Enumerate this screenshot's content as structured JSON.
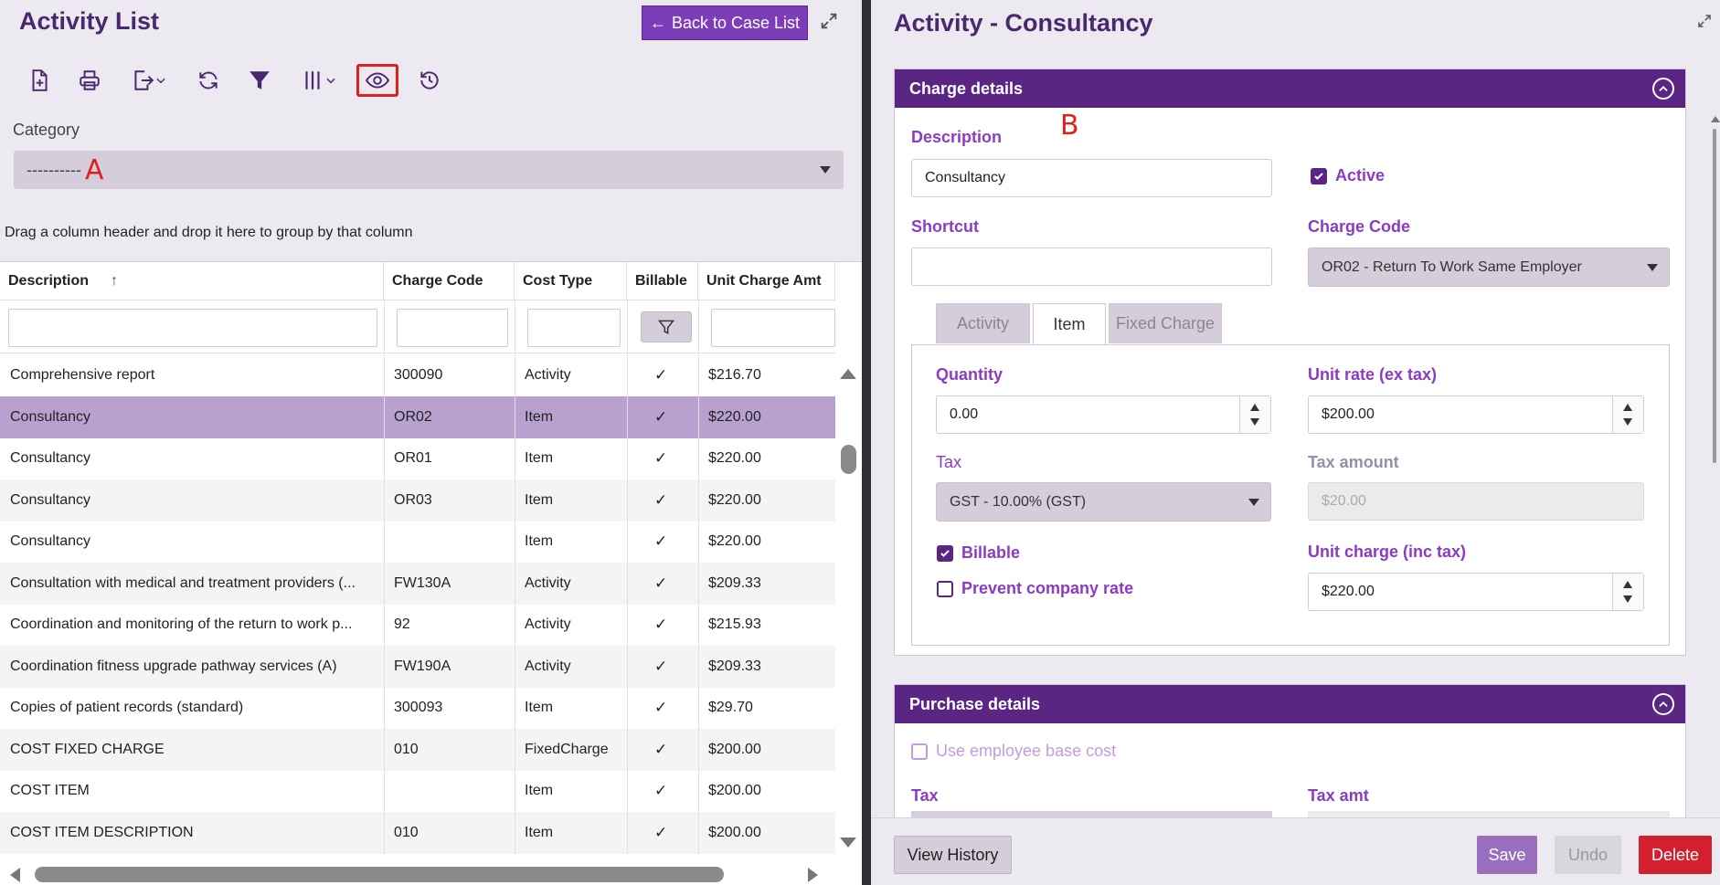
{
  "left_pane": {
    "title": "Activity List",
    "back_button_label": "Back to Case List",
    "toolbar": {
      "icons": [
        "add-document-icon",
        "print-icon",
        "export-icon",
        "refresh-icon",
        "filter-icon",
        "columns-icon",
        "eye-icon",
        "history-icon"
      ]
    },
    "category": {
      "label": "Category",
      "value": "----------",
      "marker": "A"
    },
    "group_hint": "Drag a column header and drop it here to group by that column",
    "grid": {
      "columns": [
        "Description",
        "Charge Code",
        "Cost Type",
        "Billable",
        "Unit Charge Amt"
      ],
      "sort_indicator": "↑",
      "check_glyph": "✓",
      "rows": [
        {
          "description": "Comprehensive report",
          "charge_code": "300090",
          "cost_type": "Activity",
          "unit_charge_amt": "$216.70"
        },
        {
          "description": "Consultancy",
          "charge_code": "OR02",
          "cost_type": "Item",
          "unit_charge_amt": "$220.00"
        },
        {
          "description": "Consultancy",
          "charge_code": "OR01",
          "cost_type": "Item",
          "unit_charge_amt": "$220.00"
        },
        {
          "description": "Consultancy",
          "charge_code": "OR03",
          "cost_type": "Item",
          "unit_charge_amt": "$220.00"
        },
        {
          "description": "Consultancy",
          "charge_code": "",
          "cost_type": "Item",
          "unit_charge_amt": "$220.00"
        },
        {
          "description": "Consultation with medical and treatment providers (...",
          "charge_code": "FW130A",
          "cost_type": "Activity",
          "unit_charge_amt": "$209.33"
        },
        {
          "description": "Coordination and monitoring of the return to work p...",
          "charge_code": "92",
          "cost_type": "Activity",
          "unit_charge_amt": "$215.93"
        },
        {
          "description": "Coordination fitness upgrade pathway services (A)",
          "charge_code": "FW190A",
          "cost_type": "Activity",
          "unit_charge_amt": "$209.33"
        },
        {
          "description": "Copies of patient records (standard)",
          "charge_code": "300093",
          "cost_type": "Item",
          "unit_charge_amt": "$29.70"
        },
        {
          "description": "COST FIXED CHARGE",
          "charge_code": "010",
          "cost_type": "FixedCharge",
          "unit_charge_amt": "$200.00"
        },
        {
          "description": "COST ITEM",
          "charge_code": "",
          "cost_type": "Item",
          "unit_charge_amt": "$200.00"
        },
        {
          "description": "COST ITEM DESCRIPTION",
          "charge_code": "010",
          "cost_type": "Item",
          "unit_charge_amt": "$200.00"
        }
      ]
    }
  },
  "right_pane": {
    "title": "Activity - Consultancy",
    "marker": "B",
    "charge_details": {
      "heading": "Charge details",
      "description_label": "Description",
      "description_value": "Consultancy",
      "active_label": "Active",
      "active_checked": true,
      "shortcut_label": "Shortcut",
      "shortcut_value": "",
      "charge_code_label": "Charge Code",
      "charge_code_value": "OR02 - Return To Work Same Employer",
      "tabs": [
        "Activity",
        "Item",
        "Fixed Charge"
      ],
      "active_tab": "Item",
      "item": {
        "quantity_label": "Quantity",
        "quantity_value": "0.00",
        "unit_rate_label": "Unit rate (ex tax)",
        "unit_rate_value": "$200.00",
        "tax_label": "Tax",
        "tax_value": "GST - 10.00% (GST)",
        "tax_amount_label": "Tax amount",
        "tax_amount_value": "$20.00",
        "billable_label": "Billable",
        "billable_checked": true,
        "prevent_rate_label": "Prevent company rate",
        "prevent_rate_checked": false,
        "unit_charge_label": "Unit charge (inc tax)",
        "unit_charge_value": "$220.00"
      }
    },
    "purchase_details": {
      "heading": "Purchase details",
      "use_base_cost_label": "Use employee base cost",
      "tax_label": "Tax",
      "tax_amt_label": "Tax amt"
    },
    "footer": {
      "view_history": "View History",
      "save": "Save",
      "undo": "Undo",
      "delete": "Delete"
    }
  },
  "colors": {
    "brand_purple": "#5a2583",
    "accent_purple": "#7e3db8",
    "label_purple": "#8b3bc4",
    "selected_row": "#b9a1cf",
    "delete_red": "#d2202f",
    "highlight_red": "#e0201c"
  }
}
